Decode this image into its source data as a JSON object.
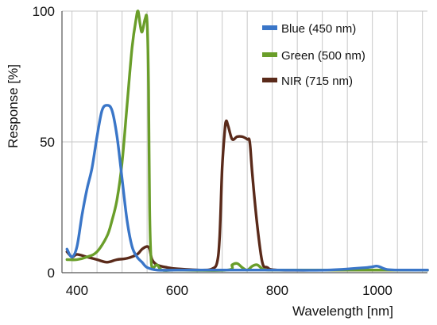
{
  "chart_data": {
    "type": "line",
    "title": "",
    "xlabel": "Wavelength [nm]",
    "ylabel": "Response [%]",
    "xlim": [
      370,
      1100
    ],
    "ylim": [
      0,
      100
    ],
    "x_ticks": [
      {
        "value": 400,
        "label": "400"
      },
      {
        "value": 600,
        "label": "600"
      },
      {
        "value": 800,
        "label": "800"
      },
      {
        "value": 1000,
        "label": "1000"
      }
    ],
    "y_ticks": [
      {
        "value": 0,
        "label": "0"
      },
      {
        "value": 50,
        "label": "50"
      },
      {
        "value": 100,
        "label": "100"
      }
    ],
    "vertical_grid_x": [
      390,
      440,
      490,
      540,
      590,
      640,
      690,
      740,
      790,
      840,
      890,
      940,
      990,
      1040,
      1090
    ],
    "grid": true,
    "legend_position": "top-right",
    "series": [
      {
        "name": "Blue (450 nm)",
        "color": "#3a76c8",
        "points": [
          [
            380,
            9
          ],
          [
            390,
            6
          ],
          [
            400,
            10
          ],
          [
            410,
            22
          ],
          [
            420,
            32
          ],
          [
            430,
            40
          ],
          [
            440,
            52
          ],
          [
            450,
            62
          ],
          [
            460,
            64
          ],
          [
            470,
            62
          ],
          [
            480,
            52
          ],
          [
            490,
            36
          ],
          [
            500,
            20
          ],
          [
            510,
            10
          ],
          [
            520,
            6
          ],
          [
            530,
            4
          ],
          [
            540,
            2
          ],
          [
            560,
            1
          ],
          [
            600,
            1
          ],
          [
            700,
            1
          ],
          [
            800,
            1
          ],
          [
            900,
            1
          ],
          [
            980,
            2
          ],
          [
            1000,
            2.5
          ],
          [
            1020,
            1.2
          ],
          [
            1060,
            1
          ],
          [
            1100,
            1
          ]
        ]
      },
      {
        "name": "Green (500 nm)",
        "color": "#6a9e2a",
        "points": [
          [
            380,
            5
          ],
          [
            400,
            5
          ],
          [
            420,
            6
          ],
          [
            440,
            8
          ],
          [
            460,
            14
          ],
          [
            470,
            20
          ],
          [
            480,
            28
          ],
          [
            490,
            42
          ],
          [
            500,
            64
          ],
          [
            510,
            86
          ],
          [
            518,
            97
          ],
          [
            522,
            100
          ],
          [
            526,
            95
          ],
          [
            530,
            92
          ],
          [
            536,
            97
          ],
          [
            540,
            96
          ],
          [
            543,
            70
          ],
          [
            545,
            25
          ],
          [
            548,
            5
          ],
          [
            552,
            2
          ],
          [
            560,
            3
          ],
          [
            570,
            1
          ],
          [
            600,
            1
          ],
          [
            700,
            1
          ],
          [
            710,
            3
          ],
          [
            720,
            3.5
          ],
          [
            730,
            2
          ],
          [
            740,
            1
          ],
          [
            750,
            2.5
          ],
          [
            760,
            3
          ],
          [
            770,
            1.5
          ],
          [
            780,
            1
          ],
          [
            800,
            1
          ],
          [
            900,
            1
          ],
          [
            1000,
            1
          ],
          [
            1100,
            1
          ]
        ]
      },
      {
        "name": "NIR (715 nm)",
        "color": "#5a2a1a",
        "points": [
          [
            380,
            8
          ],
          [
            390,
            6
          ],
          [
            400,
            7
          ],
          [
            420,
            6
          ],
          [
            440,
            5
          ],
          [
            460,
            4
          ],
          [
            480,
            5
          ],
          [
            500,
            5.5
          ],
          [
            520,
            7
          ],
          [
            530,
            9
          ],
          [
            540,
            10
          ],
          [
            545,
            9
          ],
          [
            550,
            5
          ],
          [
            560,
            3
          ],
          [
            580,
            2
          ],
          [
            600,
            1.5
          ],
          [
            650,
            1
          ],
          [
            670,
            1.5
          ],
          [
            680,
            4
          ],
          [
            685,
            14
          ],
          [
            690,
            40
          ],
          [
            695,
            54
          ],
          [
            698,
            58
          ],
          [
            702,
            56
          ],
          [
            710,
            51
          ],
          [
            720,
            52
          ],
          [
            730,
            52
          ],
          [
            740,
            51
          ],
          [
            745,
            50
          ],
          [
            750,
            38
          ],
          [
            760,
            18
          ],
          [
            770,
            4
          ],
          [
            780,
            2
          ],
          [
            800,
            1
          ],
          [
            900,
            1
          ],
          [
            1000,
            1
          ],
          [
            1100,
            1
          ]
        ]
      }
    ]
  }
}
